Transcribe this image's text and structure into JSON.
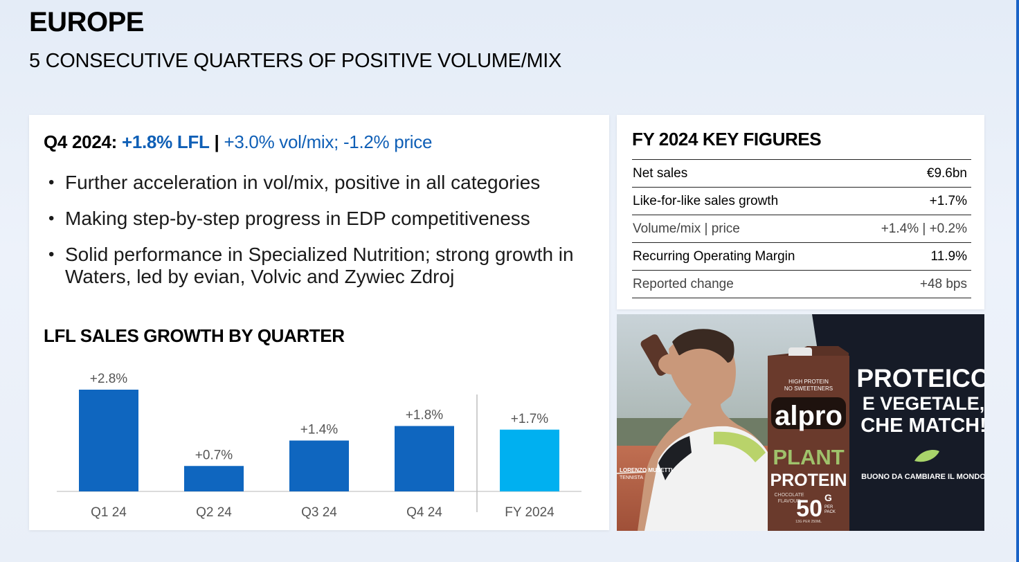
{
  "slide": {
    "title": "EUROPE",
    "subtitle": "5 CONSECUTIVE QUARTERS OF POSITIVE VOLUME/MIX"
  },
  "q4": {
    "lead": "Q4 2024:",
    "lfl": "+1.8% LFL",
    "sep": "|",
    "rest": "+3.0% vol/mix; -1.2% price"
  },
  "bullets": [
    "Further acceleration in vol/mix, positive in all categories",
    "Making step-by-step progress in EDP competitiveness",
    "Solid performance in Specialized Nutrition; strong growth in Waters, led by evian, Volvic and Zywiec Zdroj"
  ],
  "chart_title": "LFL SALES GROWTH BY QUARTER",
  "chart_data": {
    "type": "bar",
    "categories": [
      "Q1 24",
      "Q2 24",
      "Q3 24",
      "Q4 24",
      "FY 2024"
    ],
    "values": [
      2.8,
      0.7,
      1.4,
      1.8,
      1.7
    ],
    "labels": [
      "+2.8%",
      "+0.7%",
      "+1.4%",
      "+1.8%",
      "+1.7%"
    ],
    "colors": [
      "#0f66bf",
      "#0f66bf",
      "#0f66bf",
      "#0f66bf",
      "#00b0f0"
    ],
    "ylim": [
      0,
      3.2
    ],
    "grid": false,
    "separator_before": "FY 2024"
  },
  "key_figures": {
    "title": "FY 2024 KEY FIGURES",
    "rows": [
      {
        "label": "Net sales",
        "value": "€9.6bn"
      },
      {
        "label": "Like-for-like sales growth",
        "value": "+1.7%"
      },
      {
        "label": "Volume/mix | price",
        "value": "+1.4% | +0.2%"
      },
      {
        "label": "Recurring Operating Margin",
        "value": "11.9%"
      },
      {
        "label": "Reported change",
        "value": "+48 bps"
      }
    ]
  },
  "ad": {
    "brand": "alpro",
    "pack_top": "HIGH PROTEIN",
    "pack_top2": "NO SWEETENERS",
    "product1": "PLANT",
    "product2": "PROTEIN",
    "flavour1": "CHOCOLATE",
    "flavour2": "FLAVOUR",
    "grams": "50",
    "unit": "G",
    "per1": "PER",
    "per2": "PACK",
    "pack_note": "13G PER 250ML",
    "headline1": "PROTEICO",
    "headline2": "E VEGETALE,",
    "headline3": "CHE MATCH!",
    "tagline": "BUONO DA CAMBIARE IL MONDO",
    "athlete": "LORENZO MUSETTI",
    "athlete_role": "TENNISTA",
    "colors": {
      "dark": "#161b27",
      "pack": "#6a3a2c",
      "lime": "#a8d46a",
      "court": "#b9654a"
    }
  },
  "colors": {
    "accent": "#0f5fb6",
    "bar": "#0f66bf",
    "bar_fy": "#00b0f0"
  }
}
